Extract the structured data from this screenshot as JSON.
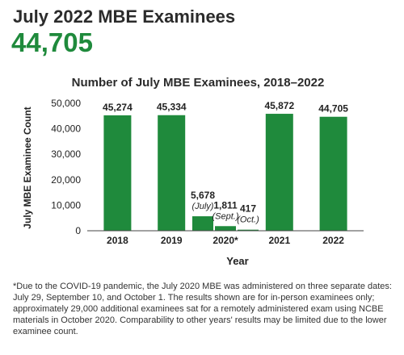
{
  "header": {
    "title": "July 2022 MBE Examinees",
    "total": "44,705"
  },
  "colors": {
    "bar": "#1f8a3c",
    "total_text": "#1f8a3c"
  },
  "chart_data": {
    "type": "bar",
    "title": "Number of July MBE Examinees, 2018–2022",
    "xlabel": "Year",
    "ylabel": "July MBE Examinee Count",
    "ylim": [
      0,
      50000
    ],
    "yticks": [
      0,
      10000,
      20000,
      30000,
      40000,
      50000
    ],
    "ytick_labels": [
      "0",
      "10,000",
      "20,000",
      "30,000",
      "40,000",
      "50,000"
    ],
    "grid": false,
    "groups": [
      {
        "label": "2018",
        "bars": [
          {
            "value": 45274,
            "value_label": "45,274",
            "sublabel": ""
          }
        ]
      },
      {
        "label": "2019",
        "bars": [
          {
            "value": 45334,
            "value_label": "45,334",
            "sublabel": ""
          }
        ]
      },
      {
        "label": "2020*",
        "bars": [
          {
            "value": 5678,
            "value_label": "5,678",
            "sublabel": "(July)"
          },
          {
            "value": 1811,
            "value_label": "1,811",
            "sublabel": "(Sept.)"
          },
          {
            "value": 417,
            "value_label": "417",
            "sublabel": "(Oct.)"
          }
        ]
      },
      {
        "label": "2021",
        "bars": [
          {
            "value": 45872,
            "value_label": "45,872",
            "sublabel": ""
          }
        ]
      },
      {
        "label": "2022",
        "bars": [
          {
            "value": 44705,
            "value_label": "44,705",
            "sublabel": ""
          }
        ]
      }
    ]
  },
  "footnote": "*Due to the COVID-19 pandemic, the July 2020 MBE was administered on three separate dates: July 29, September 10, and October 1. The results shown are for in-person examinees only; approximately 29,000 additional examinees sat for a remotely administered exam using NCBE materials in October 2020. Comparability to other years' results may be limited due to the lower examinee count."
}
